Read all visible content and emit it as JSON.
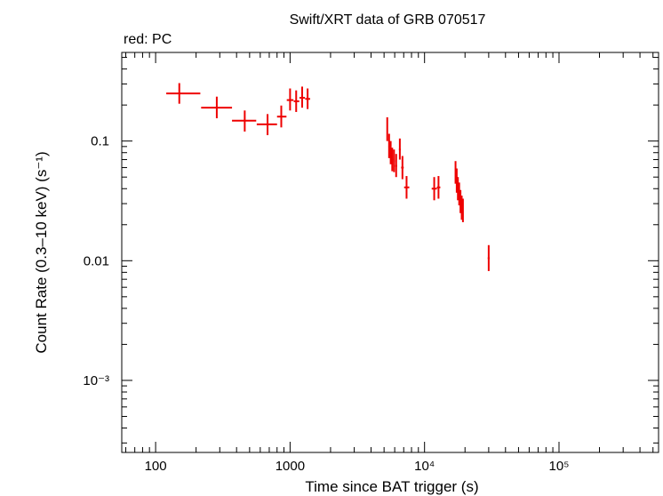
{
  "chart_data": {
    "type": "scatter",
    "title": "Swift/XRT data of GRB 070517",
    "subtitle": "red: PC",
    "xlabel": "Time since BAT trigger (s)",
    "ylabel": "Count Rate (0.3–10 keV) (s⁻¹)",
    "x_scale": "log",
    "y_scale": "log",
    "xlim": [
      56,
      550000
    ],
    "ylim": [
      0.00025,
      0.55
    ],
    "grid": false,
    "legend": "none",
    "color": "#ee0000",
    "x_ticks": [
      {
        "value": 100,
        "label": "100"
      },
      {
        "value": 1000,
        "label": "1000"
      },
      {
        "value": 10000,
        "label": "10⁴"
      },
      {
        "value": 100000,
        "label": "10⁵"
      }
    ],
    "y_ticks": [
      {
        "value": 0.1,
        "label": "0.1"
      },
      {
        "value": 0.01,
        "label": "0.01"
      },
      {
        "value": 0.001,
        "label": "10⁻³"
      }
    ],
    "series": [
      {
        "points": [
          {
            "x": 150,
            "xlo": 120,
            "xhi": 215,
            "y": 0.25,
            "ylo": 0.205,
            "yhi": 0.305
          },
          {
            "x": 285,
            "xlo": 218,
            "xhi": 370,
            "y": 0.19,
            "ylo": 0.155,
            "yhi": 0.235
          },
          {
            "x": 460,
            "xlo": 370,
            "xhi": 560,
            "y": 0.148,
            "ylo": 0.12,
            "yhi": 0.18
          },
          {
            "x": 680,
            "xlo": 565,
            "xhi": 800,
            "y": 0.138,
            "ylo": 0.112,
            "yhi": 0.168
          },
          {
            "x": 860,
            "xlo": 800,
            "xhi": 940,
            "y": 0.16,
            "ylo": 0.13,
            "yhi": 0.198
          },
          {
            "x": 1000,
            "xlo": 945,
            "xhi": 1060,
            "y": 0.22,
            "ylo": 0.18,
            "yhi": 0.275
          },
          {
            "x": 1110,
            "xlo": 1065,
            "xhi": 1170,
            "y": 0.215,
            "ylo": 0.175,
            "yhi": 0.265
          },
          {
            "x": 1230,
            "xlo": 1175,
            "xhi": 1290,
            "y": 0.23,
            "ylo": 0.19,
            "yhi": 0.285
          },
          {
            "x": 1350,
            "xlo": 1295,
            "xhi": 1410,
            "y": 0.225,
            "ylo": 0.185,
            "yhi": 0.275
          },
          {
            "x": 5280,
            "xlo": 5240,
            "xhi": 5320,
            "y": 0.125,
            "ylo": 0.1,
            "yhi": 0.158
          },
          {
            "x": 5450,
            "xlo": 5380,
            "xhi": 5520,
            "y": 0.09,
            "ylo": 0.072,
            "yhi": 0.115
          },
          {
            "x": 5600,
            "xlo": 5530,
            "xhi": 5670,
            "y": 0.08,
            "ylo": 0.064,
            "yhi": 0.1
          },
          {
            "x": 5750,
            "xlo": 5680,
            "xhi": 5820,
            "y": 0.07,
            "ylo": 0.056,
            "yhi": 0.088
          },
          {
            "x": 5930,
            "xlo": 5850,
            "xhi": 6010,
            "y": 0.068,
            "ylo": 0.055,
            "yhi": 0.085
          },
          {
            "x": 6150,
            "xlo": 6050,
            "xhi": 6250,
            "y": 0.062,
            "ylo": 0.05,
            "yhi": 0.078
          },
          {
            "x": 6550,
            "xlo": 6450,
            "xhi": 6650,
            "y": 0.085,
            "ylo": 0.07,
            "yhi": 0.105
          },
          {
            "x": 6850,
            "xlo": 6700,
            "xhi": 7000,
            "y": 0.06,
            "ylo": 0.048,
            "yhi": 0.075
          },
          {
            "x": 7350,
            "xlo": 7050,
            "xhi": 7700,
            "y": 0.041,
            "ylo": 0.033,
            "yhi": 0.051
          },
          {
            "x": 11800,
            "xlo": 11300,
            "xhi": 12350,
            "y": 0.04,
            "ylo": 0.032,
            "yhi": 0.05
          },
          {
            "x": 12700,
            "xlo": 12350,
            "xhi": 13100,
            "y": 0.041,
            "ylo": 0.033,
            "yhi": 0.051
          },
          {
            "x": 17000,
            "xlo": 16900,
            "xhi": 17100,
            "y": 0.055,
            "ylo": 0.044,
            "yhi": 0.068
          },
          {
            "x": 17350,
            "xlo": 17250,
            "xhi": 17450,
            "y": 0.047,
            "ylo": 0.037,
            "yhi": 0.059
          },
          {
            "x": 17700,
            "xlo": 17600,
            "xhi": 17800,
            "y": 0.04,
            "ylo": 0.032,
            "yhi": 0.05
          },
          {
            "x": 18100,
            "xlo": 18000,
            "xhi": 18200,
            "y": 0.036,
            "ylo": 0.029,
            "yhi": 0.045
          },
          {
            "x": 18500,
            "xlo": 18400,
            "xhi": 18600,
            "y": 0.031,
            "ylo": 0.025,
            "yhi": 0.039
          },
          {
            "x": 18900,
            "xlo": 18800,
            "xhi": 19000,
            "y": 0.028,
            "ylo": 0.022,
            "yhi": 0.035
          },
          {
            "x": 19300,
            "xlo": 19200,
            "xhi": 19400,
            "y": 0.026,
            "ylo": 0.021,
            "yhi": 0.033
          },
          {
            "x": 30000,
            "xlo": 29500,
            "xhi": 30500,
            "y": 0.0105,
            "ylo": 0.0082,
            "yhi": 0.0135
          }
        ]
      }
    ]
  }
}
